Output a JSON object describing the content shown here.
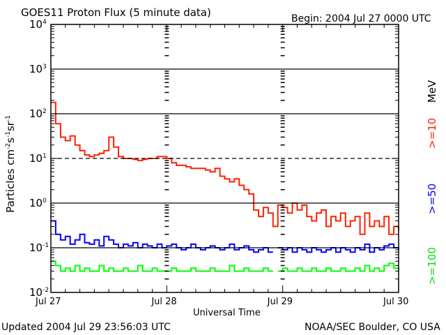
{
  "chart_data": {
    "type": "line",
    "title": "GOES11 Proton Flux (5 minute data)",
    "begin": "Begin: 2004 Jul 27 0000 UTC",
    "updated": "Updated 2004 Jul 29 23:56:03 UTC",
    "credit": "NOAA/SEC Boulder, CO USA",
    "xlabel": "Universal Time",
    "ylabel": "Particles cm",
    "ylabel_parts": [
      "-2",
      "s",
      "-1",
      "sr",
      "-1"
    ],
    "yscale": "log",
    "ylim": [
      0.01,
      10000
    ],
    "xlim_hours": [
      0,
      72
    ],
    "x_tick_labels": [
      "Jul 27",
      "Jul 28",
      "Jul 29",
      "Jul 30"
    ],
    "y_tick_base": "10",
    "y_tick_exponents": [
      "-2",
      "-1",
      "0",
      "1",
      "2",
      "3",
      "4"
    ],
    "units_label": "MeV",
    "grid": "horizontal decades (10^1 dashed), vertical day markers",
    "x_hours": [
      0,
      1,
      2,
      3,
      4,
      5,
      6,
      7,
      8,
      9,
      10,
      11,
      12,
      13,
      14,
      15,
      16,
      17,
      18,
      19,
      20,
      21,
      22,
      23,
      24,
      25,
      26,
      27,
      28,
      29,
      30,
      31,
      32,
      33,
      34,
      35,
      36,
      37,
      38,
      39,
      40,
      41,
      42,
      43,
      44,
      45,
      46,
      47,
      48,
      49,
      50,
      51,
      52,
      53,
      54,
      55,
      56,
      57,
      58,
      59,
      60,
      61,
      62,
      63,
      64,
      65,
      66,
      67,
      68,
      69,
      70,
      71,
      72
    ],
    "series": [
      {
        "name": ">=10",
        "color": "#ff2000",
        "values": [
          180,
          60,
          30,
          25,
          32,
          20,
          15,
          12,
          11,
          12,
          13,
          15,
          30,
          18,
          11,
          10,
          10,
          9.5,
          9,
          9.5,
          10,
          10,
          11,
          11,
          10,
          8,
          7,
          7,
          6.5,
          6,
          6,
          6,
          5.5,
          5,
          6,
          4,
          3.5,
          3,
          3.5,
          2.5,
          2,
          1.6,
          0.7,
          0.5,
          0.8,
          0.6,
          0.3,
          0.9,
          0.8,
          0.6,
          1.0,
          0.7,
          0.9,
          0.5,
          0.4,
          0.6,
          0.7,
          0.3,
          0.5,
          0.4,
          0.6,
          0.3,
          0.4,
          0.5,
          0.2,
          0.6,
          0.3,
          0.4,
          0.3,
          0.5,
          0.2,
          0.3,
          0.25
        ]
      },
      {
        "name": ">=50",
        "color": "#0000ff",
        "values": [
          0.4,
          0.2,
          0.15,
          0.18,
          0.12,
          0.15,
          0.2,
          0.13,
          0.12,
          0.15,
          0.11,
          0.18,
          0.15,
          0.12,
          0.1,
          0.12,
          0.11,
          0.13,
          0.1,
          0.12,
          0.11,
          0.1,
          0.12,
          0.1,
          0.11,
          0.12,
          0.1,
          0.09,
          0.1,
          0.12,
          0.1,
          0.09,
          0.1,
          0.11,
          0.1,
          0.09,
          0.1,
          0.12,
          0.09,
          0.1,
          0.11,
          0.09,
          0.08,
          0.09,
          0.1,
          0.08,
          null,
          0.1,
          0.09,
          0.1,
          0.08,
          0.1,
          0.09,
          0.08,
          0.1,
          0.09,
          0.08,
          0.09,
          0.1,
          0.08,
          0.1,
          0.09,
          0.08,
          0.1,
          0.09,
          0.12,
          0.08,
          0.1,
          0.09,
          0.11,
          0.12,
          0.1,
          0.09
        ]
      },
      {
        "name": ">=100",
        "color": "#00ff00",
        "values": [
          0.05,
          0.04,
          0.03,
          0.035,
          0.03,
          0.04,
          0.03,
          0.035,
          0.03,
          0.03,
          0.04,
          0.03,
          0.035,
          0.03,
          0.03,
          0.035,
          0.03,
          0.03,
          0.04,
          0.03,
          0.03,
          0.035,
          0.03,
          0.03,
          0.03,
          0.035,
          0.03,
          0.03,
          0.03,
          0.035,
          0.03,
          0.03,
          0.03,
          0.035,
          0.03,
          0.03,
          0.03,
          0.04,
          0.03,
          0.03,
          0.035,
          0.03,
          0.03,
          0.03,
          0.035,
          0.03,
          null,
          0.03,
          0.035,
          0.03,
          0.03,
          0.035,
          0.03,
          0.03,
          0.035,
          0.03,
          0.03,
          0.035,
          0.03,
          0.03,
          0.035,
          0.03,
          0.03,
          0.035,
          0.03,
          0.04,
          0.03,
          0.035,
          0.03,
          0.04,
          0.045,
          0.035,
          0.03
        ]
      }
    ]
  }
}
